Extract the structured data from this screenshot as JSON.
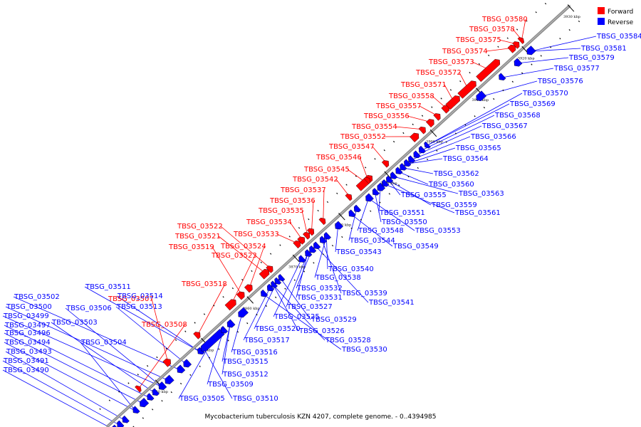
{
  "caption": "Mycobacterium tuberculosis KZN 4207, complete genome. - 0..4394985",
  "legend": {
    "forward": {
      "label": "Forward",
      "color": "#ff0000"
    },
    "reverse": {
      "label": "Reverse",
      "color": "#0000ff"
    }
  },
  "colors": {
    "axis": "#8c8c8c",
    "tick": "#000000"
  },
  "scale_marks": [
    "3840 kbp",
    "3850 kbp",
    "3860 kbp",
    "3870 kbp",
    "3880 kbp",
    "3890 kbp",
    "3900 kbp",
    "3910 kbp",
    "3920 kbp",
    "3930 kbp"
  ],
  "forward_labels": [
    "TBSG_03580",
    "TBSG_03578",
    "TBSG_03575",
    "TBSG_03574",
    "TBSG_03573",
    "TBSG_03572",
    "TBSG_03571",
    "TBSG_03558",
    "TBSG_03557",
    "TBSG_03556",
    "TBSG_03554",
    "TBSG_03552",
    "TBSG_03547",
    "TBSG_03546",
    "TBSG_03545",
    "TBSG_03542",
    "TBSG_03537",
    "TBSG_03536",
    "TBSG_03535",
    "TBSG_03534",
    "TBSG_03533",
    "TBSG_03522",
    "TBSG_03521",
    "TBSG_03524",
    "TBSG_03519",
    "TBSG_03523",
    "TBSG_03518",
    "TBSG_03507",
    "TBSG_03508"
  ],
  "reverse_labels": [
    "TBSG_03584",
    "TBSG_03581",
    "TBSG_03579",
    "TBSG_03577",
    "TBSG_03576",
    "TBSG_03570",
    "TBSG_03569",
    "TBSG_03568",
    "TBSG_03567",
    "TBSG_03566",
    "TBSG_03565",
    "TBSG_03564",
    "TBSG_03562",
    "TBSG_03560",
    "TBSG_03563",
    "TBSG_03555",
    "TBSG_03559",
    "TBSG_03561",
    "TBSG_03551",
    "TBSG_03550",
    "TBSG_03548",
    "TBSG_03553",
    "TBSG_03544",
    "TBSG_03549",
    "TBSG_03543",
    "TBSG_03540",
    "TBSG_03538",
    "TBSG_03539",
    "TBSG_03541",
    "TBSG_03532",
    "TBSG_03531",
    "TBSG_03527",
    "TBSG_03525",
    "TBSG_03529",
    "TBSG_03520",
    "TBSG_03526",
    "TBSG_03528",
    "TBSG_03517",
    "TBSG_03530",
    "TBSG_03516",
    "TBSG_03515",
    "TBSG_03512",
    "TBSG_03509",
    "TBSG_03505",
    "TBSG_03510",
    "TBSG_03511",
    "TBSG_03514",
    "TBSG_03513",
    "TBSG_03502",
    "TBSG_03500",
    "TBSG_03506",
    "TBSG_03499",
    "TBSG_03503",
    "TBSG_03497",
    "TBSG_03496",
    "TBSG_03494",
    "TBSG_03504",
    "TBSG_03493",
    "TBSG_03491",
    "TBSG_03490"
  ]
}
